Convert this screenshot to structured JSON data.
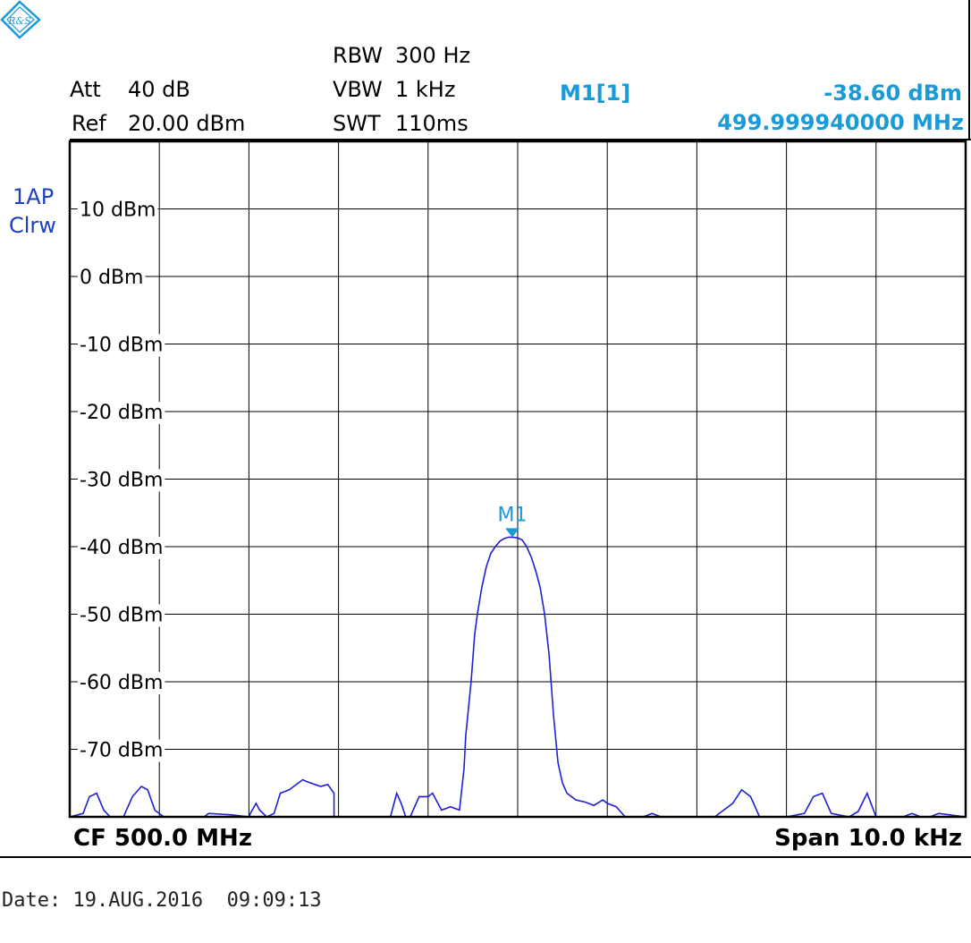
{
  "settings": {
    "att_label": "Att",
    "att_value": "40 dB",
    "ref_label": "Ref",
    "ref_value": "20.00 dBm",
    "rbw_label": "RBW",
    "rbw_value": "300 Hz",
    "vbw_label": "VBW",
    "vbw_value": "1 kHz",
    "swt_label": "SWT",
    "swt_value": "110ms"
  },
  "marker_readout": {
    "name": "M1[1]",
    "level": "-38.60 dBm",
    "frequency": "499.999940000 MHz"
  },
  "trace_info": {
    "line1": "1AP",
    "line2": "Clrw"
  },
  "footer": {
    "center": "CF 500.0 MHz",
    "span": "Span 10.0 kHz"
  },
  "date_line": "Date: 19.AUG.2016  09:09:13",
  "logo_text": "R&S",
  "colors": {
    "trace": "#1f1fd6",
    "marker": "#1a9ad6",
    "grid": "#000000",
    "side_text": "#1f3fbf"
  },
  "chart_data": {
    "type": "line",
    "xlabel": "",
    "ylabel": "",
    "x_unit": "kHz offset from CF",
    "xlim": [
      -5,
      5
    ],
    "ylim": [
      -80,
      20
    ],
    "grid": true,
    "y_tick_labels": [
      "10 dBm",
      "0 dBm",
      "-10 dBm",
      "-20 dBm",
      "-30 dBm",
      "-40 dBm",
      "-50 dBm",
      "-60 dBm",
      "-70 dBm"
    ],
    "y_ticks": [
      10,
      0,
      -10,
      -20,
      -30,
      -40,
      -50,
      -60,
      -70
    ],
    "marker": {
      "label": "M1",
      "x": -0.06,
      "y": -38.6
    },
    "series": [
      {
        "x": [
          -5.0,
          -4.85,
          -4.78,
          -4.7,
          -4.62,
          -4.55,
          -4.4,
          -4.3,
          -4.2,
          -4.13,
          -4.05,
          -3.95,
          -3.8,
          -3.5,
          -3.45,
          -3.2,
          -3.0,
          -2.98,
          -2.92,
          -2.88,
          -2.8,
          -2.72,
          -2.65,
          -2.55,
          -2.4,
          -2.35,
          -2.2,
          -2.12,
          -2.05,
          -2.05,
          -1.6,
          -1.42,
          -1.4,
          -1.35,
          -1.3,
          -1.25,
          -1.2,
          -1.1,
          -1.0,
          -0.95,
          -0.85,
          -0.75,
          -0.65,
          -0.6,
          -0.58,
          -0.52,
          -0.48,
          -0.45,
          -0.4,
          -0.35,
          -0.3,
          -0.25,
          -0.2,
          -0.15,
          -0.1,
          -0.06,
          0.0,
          0.05,
          0.1,
          0.15,
          0.2,
          0.25,
          0.3,
          0.35,
          0.4,
          0.45,
          0.5,
          0.55,
          0.65,
          0.75,
          0.85,
          0.95,
          1.0,
          1.1,
          1.2,
          1.3,
          1.4,
          1.5,
          1.6,
          1.8,
          2.0,
          2.2,
          2.4,
          2.5,
          2.6,
          2.7,
          2.85,
          3.0,
          3.2,
          3.3,
          3.4,
          3.5,
          3.7,
          3.8,
          3.9,
          4.0,
          4.1,
          4.3,
          4.4,
          4.5,
          4.6,
          4.7,
          5.0
        ],
        "y": [
          -80,
          -79.5,
          -77,
          -76.5,
          -79,
          -80,
          -80,
          -77,
          -75.5,
          -76,
          -79,
          -80,
          -80,
          -80,
          -79.5,
          -79.7,
          -80,
          -79.4,
          -78,
          -79,
          -80,
          -79.5,
          -76.5,
          -76,
          -74.5,
          -74.8,
          -75.5,
          -75.2,
          -76.5,
          -80,
          -80,
          -80,
          -79,
          -76.5,
          -78,
          -80,
          -80,
          -77,
          -77,
          -76.5,
          -79,
          -78.5,
          -79,
          -73,
          -68,
          -60,
          -53,
          -50,
          -46,
          -43,
          -41,
          -40,
          -39.2,
          -38.8,
          -38.6,
          -38.6,
          -38.7,
          -39,
          -40,
          -41.5,
          -43.5,
          -46,
          -50,
          -56,
          -65,
          -72,
          -75,
          -76.5,
          -77.5,
          -77.8,
          -78.3,
          -77.5,
          -78,
          -78.5,
          -80,
          -80,
          -80,
          -79.5,
          -80,
          -80,
          -80,
          -80,
          -78,
          -76,
          -77,
          -80,
          -80,
          -80,
          -79.5,
          -77,
          -76.5,
          -79.5,
          -80,
          -79.2,
          -76.5,
          -80,
          -80,
          -80,
          -79.5,
          -80,
          -80,
          -79.5,
          -80
        ]
      }
    ]
  }
}
